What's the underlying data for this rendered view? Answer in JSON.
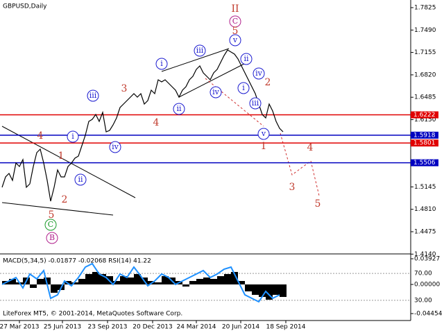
{
  "chart_data": [
    {
      "type": "line",
      "title": "GBPUSD,Daily",
      "color": "#000000",
      "x": [
        0,
        1,
        2,
        3,
        4,
        5,
        6,
        7,
        8,
        9,
        10,
        11,
        12,
        13,
        14,
        15,
        16,
        17,
        18,
        19,
        20,
        21,
        22,
        23,
        24,
        25,
        26,
        27,
        28,
        29,
        30,
        31,
        32,
        33,
        34,
        35,
        36,
        37,
        38,
        39,
        40,
        41,
        42,
        43,
        44,
        45,
        46,
        47,
        48,
        49,
        50,
        51,
        52,
        53,
        54,
        55,
        56,
        57,
        58,
        59,
        60,
        61,
        62,
        63,
        64,
        65,
        66,
        67,
        68,
        69,
        70,
        71,
        72,
        73,
        74,
        75,
        76,
        77,
        78,
        79,
        80,
        81
      ],
      "values": [
        1.5139,
        1.5294,
        1.5346,
        1.5242,
        1.5502,
        1.545,
        1.5554,
        1.5139,
        1.5191,
        1.545,
        1.5657,
        1.5709,
        1.5502,
        1.5242,
        1.4931,
        1.5139,
        1.5398,
        1.5294,
        1.5294,
        1.545,
        1.5502,
        1.5574,
        1.5605,
        1.5761,
        1.5917,
        1.6124,
        1.6155,
        1.6228,
        1.6124,
        1.6259,
        1.5968,
        1.5989,
        1.6072,
        1.6176,
        1.6331,
        1.6383,
        1.6435,
        1.6487,
        1.6539,
        1.6487,
        1.6539,
        1.6383,
        1.6435,
        1.6591,
        1.6539,
        1.6746,
        1.6715,
        1.6746,
        1.6694,
        1.6643,
        1.6591,
        1.6487,
        1.6591,
        1.6643,
        1.6746,
        1.6798,
        1.6902,
        1.6954,
        1.685,
        1.6798,
        1.6746,
        1.685,
        1.6902,
        1.7006,
        1.7109,
        1.7192,
        1.7161,
        1.713,
        1.7058,
        1.6954,
        1.685,
        1.6746,
        1.6643,
        1.6539,
        1.6383,
        1.6228,
        1.6176,
        1.6383,
        1.628,
        1.6124,
        1.602,
        1.5968
      ],
      "xlim": [
        -0.6,
        117.8
      ],
      "xticks": [
        {
          "value": 5,
          "label": "27 Mar 2013"
        },
        {
          "value": 17.4,
          "label": "25 Jun 2013"
        },
        {
          "value": 30.4,
          "label": "23 Sep 2013"
        },
        {
          "value": 43.4,
          "label": "20 Dec 2013"
        },
        {
          "value": 56,
          "label": "24 Mar 2014"
        },
        {
          "value": 68.8,
          "label": "20 Jun 2014"
        },
        {
          "value": 81.8,
          "label": "18 Sep 2014"
        }
      ],
      "ylim": [
        1.4143,
        1.7939
      ],
      "yticks": [
        1.7825,
        {
          "value": 1.749,
          "label": "1.7490"
        },
        1.7155,
        {
          "value": 1.682,
          "label": "1.6820"
        },
        1.6485,
        {
          "value": 1.615,
          "label": "1.6150"
        },
        1.5145,
        {
          "value": 1.481,
          "label": "1.4810"
        },
        1.4475,
        {
          "value": 1.414,
          "label": "1.4140"
        }
      ],
      "levels": [
        {
          "value": 1.6222,
          "color": "#e00000"
        },
        {
          "value": 1.5918,
          "color": "#0000c0"
        },
        {
          "value": 1.5801,
          "color": "#e00000"
        },
        {
          "value": 1.5506,
          "color": "#0000c0"
        }
      ],
      "annotations": [
        {
          "text": "II",
          "color": "#c0392b",
          "circled": false
        },
        {
          "text": "C",
          "color": "#b0208c",
          "circled": true
        },
        {
          "text": "5",
          "color": "#c0392b",
          "circled": false
        },
        {
          "text": "v",
          "color": "#1a1ad0",
          "circled": true
        },
        {
          "text": "iii",
          "color": "#1a1ad0",
          "circled": true
        },
        {
          "text": "ii",
          "color": "#1a1ad0",
          "circled": true
        },
        {
          "text": "i",
          "color": "#1a1ad0",
          "circled": true
        },
        {
          "text": "iv",
          "color": "#1a1ad0",
          "circled": true
        },
        {
          "text": "3",
          "color": "#c0392b",
          "circled": false
        },
        {
          "text": "iii",
          "color": "#1a1ad0",
          "circled": true
        },
        {
          "text": "i",
          "color": "#1a1ad0",
          "circled": true
        },
        {
          "text": "2",
          "color": "#c0392b",
          "circled": false
        },
        {
          "text": "iv",
          "color": "#1a1ad0",
          "circled": true
        },
        {
          "text": "ii",
          "color": "#1a1ad0",
          "circled": true
        },
        {
          "text": "iii",
          "color": "#1a1ad0",
          "circled": true
        },
        {
          "text": "4",
          "color": "#c0392b",
          "circled": false
        },
        {
          "text": "v",
          "color": "#1a1ad0",
          "circled": true
        },
        {
          "text": "1",
          "color": "#c0392b",
          "circled": false
        },
        {
          "text": "i",
          "color": "#1a1ad0",
          "circled": true
        },
        {
          "text": "4",
          "color": "#c0392b",
          "circled": false
        },
        {
          "text": "iv",
          "color": "#1a1ad0",
          "circled": true
        },
        {
          "text": "1",
          "color": "#c0392b",
          "circled": false
        },
        {
          "text": "4",
          "color": "#c0392b",
          "circled": false
        },
        {
          "text": "ii",
          "color": "#1a1ad0",
          "circled": true
        },
        {
          "text": "2",
          "color": "#c0392b",
          "circled": false
        },
        {
          "text": "3",
          "color": "#c0392b",
          "circled": false
        },
        {
          "text": "5",
          "color": "#c0392b",
          "circled": false
        },
        {
          "text": "5",
          "color": "#c0392b",
          "circled": false
        },
        {
          "text": "C",
          "color": "#1a9a2a",
          "circled": true
        },
        {
          "text": "B",
          "color": "#b0208c",
          "circled": true
        }
      ]
    },
    {
      "type": "macd",
      "title": "MACD(5,34,5) -0.01877 -0.02068 RSI(14) 41.22",
      "x": [
        0,
        2,
        4,
        6,
        8,
        10,
        12,
        14,
        16,
        18,
        20,
        22,
        24,
        26,
        28,
        30,
        32,
        34,
        36,
        38,
        40,
        42,
        44,
        46,
        48,
        50,
        52,
        54,
        56,
        58,
        60,
        62,
        64,
        66,
        68,
        70,
        72,
        74,
        76,
        78,
        80
      ],
      "xlim": [
        -0.6,
        117.8
      ],
      "ylim": [
        -0.04454,
        0.03927
      ],
      "yticks": [
        0.03927,
        {
          "value": 0,
          "label": "0.00000"
        },
        -0.04454
      ],
      "y2lim": [
        0,
        100
      ],
      "y2ticks": [
        {
          "value": 70,
          "label": "70.00"
        },
        {
          "value": 30,
          "label": "30.00"
        }
      ],
      "series": [
        {
          "color": "#000000",
          "values": [
            0.0053,
            0.0085,
            0.0032,
            0.0106,
            -0.0053,
            0.0085,
            0.0106,
            -0.0127,
            -0.0085,
            0.0053,
            0.0032,
            0.0085,
            0.0159,
            0.0191,
            0.0159,
            0.0127,
            0.0053,
            0.0127,
            0.0106,
            0.0159,
            0.0106,
            0.0053,
            0.0032,
            0.0127,
            0.0106,
            0.0053,
            -0.0032,
            0.0053,
            0.0085,
            0.0106,
            0.0085,
            0.0127,
            0.0159,
            0.0191,
            0.0053,
            -0.0106,
            -0.0159,
            -0.0191,
            -0.0233,
            -0.0159,
            -0.0191
          ]
        },
        {
          "color": "#1e90ff",
          "axis": "y2",
          "values": [
            53.6,
            58.8,
            63.9,
            48.5,
            69.1,
            61.9,
            74.2,
            33.0,
            38.1,
            58.8,
            51.5,
            63.9,
            79.4,
            84.5,
            69.1,
            63.9,
            53.6,
            69.1,
            63.9,
            79.4,
            66.0,
            51.5,
            58.8,
            69.1,
            63.9,
            53.6,
            58.8,
            63.9,
            69.1,
            74.2,
            63.9,
            69.1,
            76.3,
            79.4,
            58.8,
            38.1,
            33.0,
            27.8,
            43.3,
            33.0,
            38.1
          ]
        }
      ]
    }
  ],
  "footer": "LiteForex MT5, © 2001-2014, MetaQuotes Software Corp."
}
